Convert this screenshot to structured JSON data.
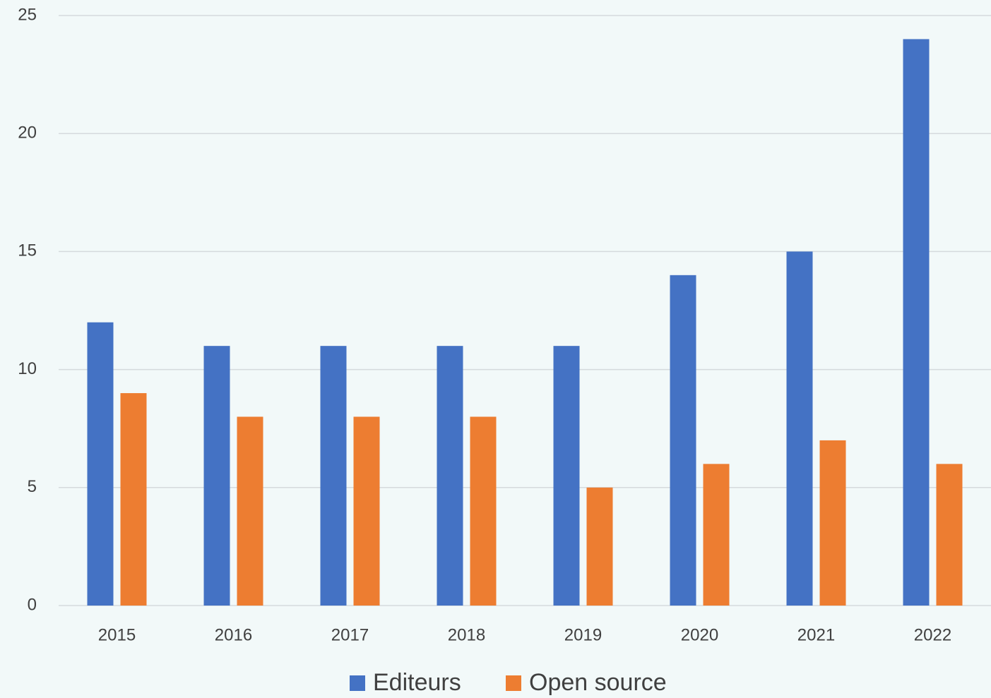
{
  "chart_data": {
    "type": "bar",
    "categories": [
      "2015",
      "2016",
      "2017",
      "2018",
      "2019",
      "2020",
      "2021",
      "2022"
    ],
    "series": [
      {
        "name": "Editeurs",
        "color": "#4472c4",
        "values": [
          12,
          11,
          11,
          11,
          11,
          14,
          15,
          24
        ]
      },
      {
        "name": "Open source",
        "color": "#ed7d31",
        "values": [
          9,
          8,
          8,
          8,
          5,
          6,
          7,
          6
        ]
      }
    ],
    "ylim": [
      0,
      25
    ],
    "yticks": [
      0,
      5,
      10,
      15,
      20,
      25
    ],
    "grid": true,
    "legend": "bottom"
  }
}
